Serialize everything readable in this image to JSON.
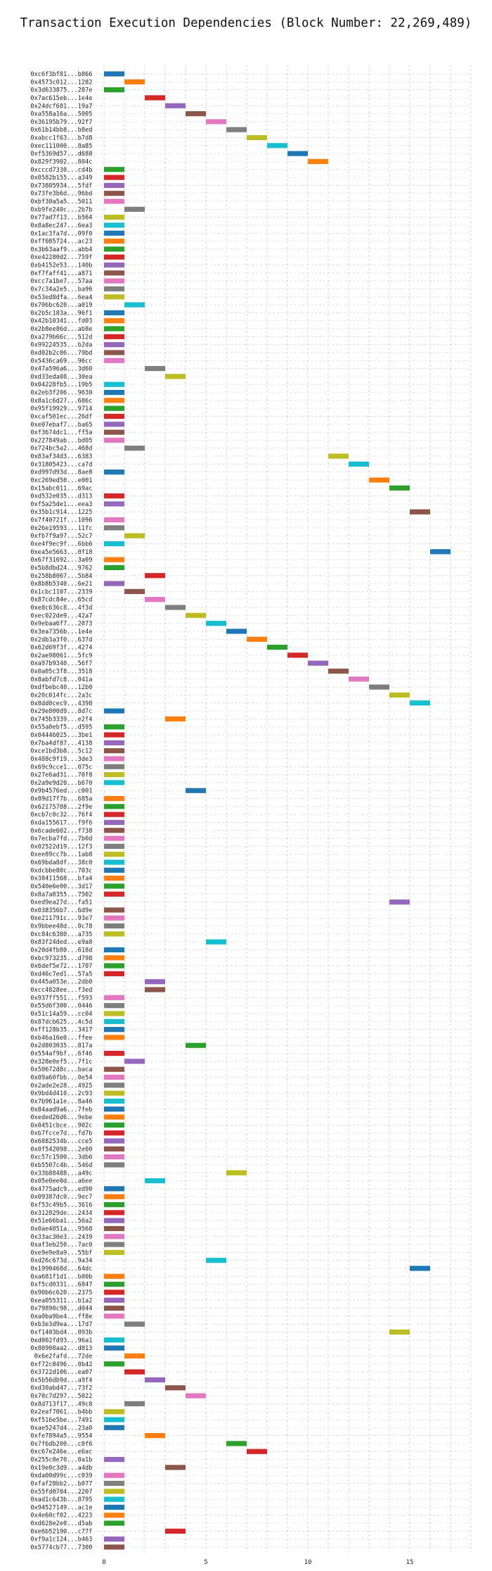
{
  "chart_data": {
    "type": "gantt",
    "title": "Transaction Execution Dependencies (Block Number: 22,269,489)",
    "xlabel": "",
    "ylabel": "",
    "xlim": [
      -0.4,
      18
    ],
    "xticks": [
      0,
      5,
      10,
      15
    ],
    "grid": true,
    "palette": [
      "#1f77b4",
      "#ff7f0e",
      "#2ca02c",
      "#d62728",
      "#9467bd",
      "#8c564b",
      "#e377c2",
      "#7f7f7f",
      "#bcbd22",
      "#17becf"
    ],
    "rows": [
      [
        "0xc6f3bf81...b866",
        0
      ],
      [
        "0x4573c012...1282",
        1
      ],
      [
        "0x3d633875...287e",
        0
      ],
      [
        "0x7ac615eb...1e4e",
        2
      ],
      [
        "0x24dcf681...19a7",
        3
      ],
      [
        "0xa558a16a...5005",
        4
      ],
      [
        "0x36195b79...92f7",
        5
      ],
      [
        "0x61b14bb8...b8ed",
        6
      ],
      [
        "0xabcc1f63...b7d8",
        7
      ],
      [
        "0xec111000...8a85",
        8
      ],
      [
        "0xf5369d57...d688",
        9
      ],
      [
        "0x829f3902...804c",
        10
      ],
      [
        "0xcccd7330...cd4b",
        0
      ],
      [
        "0x0582b155...a349",
        0
      ],
      [
        "0x73805934...5fdf",
        0
      ],
      [
        "0x73fe3b6d...96bd",
        0
      ],
      [
        "0xbf30a5a5...5011",
        0
      ],
      [
        "0xb9fe240c...2b7b",
        1
      ],
      [
        "0x77ad7f13...b564",
        0
      ],
      [
        "0x8a8ec247...6ea3",
        0
      ],
      [
        "0x1ac3fa7d...09f0",
        0
      ],
      [
        "0xff085724...ac23",
        0
      ],
      [
        "0x3b63aaf9...abb4",
        0
      ],
      [
        "0xe42280d2...759f",
        0
      ],
      [
        "0xb4152e53...140b",
        0
      ],
      [
        "0xf7faff41...a871",
        0
      ],
      [
        "0xcc7a1be7...57aa",
        0
      ],
      [
        "0x7c34a2e5...ba96",
        0
      ],
      [
        "0x53ed8dfa...6ea4",
        0
      ],
      [
        "0x706bc620...a019",
        1
      ],
      [
        "0x2b5c183a...96f1",
        0
      ],
      [
        "0x42b10341...fd03",
        0
      ],
      [
        "0x2b8ee86d...ab8e",
        0
      ],
      [
        "0xa279b66c...512d",
        0
      ],
      [
        "0x99224535...b2da",
        0
      ],
      [
        "0xd02b2c06...79bd",
        0
      ],
      [
        "0x5436ca69...96cc",
        0
      ],
      [
        "0x47a596a6...3d60",
        2
      ],
      [
        "0xd33eda08...30ea",
        3
      ],
      [
        "0x04228fb5...19b5",
        0
      ],
      [
        "0x2eb3f206...9630",
        0
      ],
      [
        "0x8a1c6d27...686c",
        0
      ],
      [
        "0x95f19929...9714",
        0
      ],
      [
        "0xcaf501ec...26df",
        0
      ],
      [
        "0xe07ebaf7...ba65",
        0
      ],
      [
        "0xf3674dc1...ff5a",
        0
      ],
      [
        "0x227849ab...bd05",
        0
      ],
      [
        "0x724bc5a2...468d",
        1
      ],
      [
        "0x83af34d3...6383",
        11
      ],
      [
        "0x31805423...ca7d",
        12
      ],
      [
        "0xd997d93d...8ae8",
        0
      ],
      [
        "0xc269ed50...e001",
        13
      ],
      [
        "0x15abc011...69ac",
        14
      ],
      [
        "0xd532e035...d313",
        0
      ],
      [
        "0xf5a25de1...eea3",
        0
      ],
      [
        "0x35b1c914...1225",
        15
      ],
      [
        "0x7f40721f...1096",
        0
      ],
      [
        "0x26e19593...11fc",
        0
      ],
      [
        "0xfb7f9a97...52c7",
        1
      ],
      [
        "0xe4f9ec9f...6bb6",
        0
      ],
      [
        "0xea5e5663...0f18",
        16
      ],
      [
        "0x67f31692...3a09",
        0
      ],
      [
        "0x5b8dbd24...9762",
        0
      ],
      [
        "0x258b8067...5b84",
        2
      ],
      [
        "0x8b8b5340...6e21",
        0
      ],
      [
        "0x1cbc1107...2339",
        1
      ],
      [
        "0x87cdc84e...65cd",
        2
      ],
      [
        "0xe8c636c8...4f3d",
        3
      ],
      [
        "0xec022de9...42a7",
        4
      ],
      [
        "0x9ebaa6f7...2073",
        5
      ],
      [
        "0x3ea7356b...1e4e",
        6
      ],
      [
        "0x2db3a3f0...637d",
        7
      ],
      [
        "0x62d69f3f...4274",
        8
      ],
      [
        "0x2ae98061...5fc9",
        9
      ],
      [
        "0xa97b9340...56f7",
        10
      ],
      [
        "0x0a05c3f8...3518",
        11
      ],
      [
        "0x8abfd7c8...041a",
        12
      ],
      [
        "0xdfbebc40...12b0",
        13
      ],
      [
        "0x20c014fc...2a3c",
        14
      ],
      [
        "0x8dd0cec9...4398",
        15
      ],
      [
        "0x29e800d9...8d7c",
        0
      ],
      [
        "0x745b3339...e2f4",
        3
      ],
      [
        "0x55a0ebf5...d595",
        0
      ],
      [
        "0x04446025...3be1",
        0
      ],
      [
        "0x7ba4df87...4138",
        0
      ],
      [
        "0xce1bd3b8...5c12",
        0
      ],
      [
        "0x488c9f19...3de3",
        0
      ],
      [
        "0x69c9cce1...075c",
        0
      ],
      [
        "0x27e6ad31...70f8",
        0
      ],
      [
        "0x2a9e9d20...b670",
        0
      ],
      [
        "0x9b4576ed...c001",
        4
      ],
      [
        "0x89d17f7b...685a",
        0
      ],
      [
        "0x62175788...2f9e",
        0
      ],
      [
        "0xcb7c0c32...76f4",
        0
      ],
      [
        "0xda155617...f9f6",
        0
      ],
      [
        "0x6cade602...f738",
        0
      ],
      [
        "0x7ecba7fd...7b0d",
        0
      ],
      [
        "0x02522d19...12f3",
        0
      ],
      [
        "0xee89cc7b...1ab8",
        0
      ],
      [
        "0x69bda8df...38c0",
        0
      ],
      [
        "0xdcbbe80c...703c",
        0
      ],
      [
        "0x38411568...bfa4",
        0
      ],
      [
        "0x540e6e00...3d17",
        0
      ],
      [
        "0x8a7a8355...7502",
        0
      ],
      [
        "0xed9ea27d...fa51",
        14
      ],
      [
        "0x038356b7...6d9e",
        0
      ],
      [
        "0xe211791c...93e7",
        0
      ],
      [
        "0x9bbee48d...0c78",
        0
      ],
      [
        "0xc84c6380...a735",
        0
      ],
      [
        "0x83f24ded...e9a8",
        5
      ],
      [
        "0x20d4fb80...618d",
        0
      ],
      [
        "0xbc973235...d798",
        0
      ],
      [
        "0x6def5e72...1707",
        0
      ],
      [
        "0xd46c7ed1...57a5",
        0
      ],
      [
        "0x445a053e...2db0",
        2
      ],
      [
        "0xcc4828ee...f3ed",
        2
      ],
      [
        "0x937ff551...f593",
        0
      ],
      [
        "0x55d6f300...0446",
        0
      ],
      [
        "0x51c14a59...cc04",
        0
      ],
      [
        "0x87dcb625...4c5d",
        0
      ],
      [
        "0xff128b35...3417",
        0
      ],
      [
        "0xb46a16e0...ffee",
        0
      ],
      [
        "0x2d803035...817a",
        4
      ],
      [
        "0x554af9bf...6f46",
        0
      ],
      [
        "0x328e0ef5...7f1c",
        1
      ],
      [
        "0x50672d8c...baca",
        0
      ],
      [
        "0x89a60fbb...0e54",
        0
      ],
      [
        "0x2ade2e28...4925",
        0
      ],
      [
        "0x9bd4d410...2c93",
        0
      ],
      [
        "0x7b961a1e...8a46",
        0
      ],
      [
        "0x84aad9a6...7feb",
        0
      ],
      [
        "0xeded26d6...9ebe",
        0
      ],
      [
        "0x0451cbce...902c",
        0
      ],
      [
        "0xb7fcce7d...fd7b",
        0
      ],
      [
        "0x6882534b...cce5",
        0
      ],
      [
        "0x0f542098...2e00",
        0
      ],
      [
        "0xc57c1500...3db6",
        0
      ],
      [
        "0xb5507c4b...546d",
        0
      ],
      [
        "0x33b88488...a49c",
        6
      ],
      [
        "0x05e0ee0d...a6ee",
        2
      ],
      [
        "0x4775adc9...ed90",
        0
      ],
      [
        "0x09387dc0...9ec7",
        0
      ],
      [
        "0xf53c49b5...3616",
        0
      ],
      [
        "0x312029de...2434",
        0
      ],
      [
        "0x51e66ba1...56a2",
        0
      ],
      [
        "0x0ae4051a...9568",
        0
      ],
      [
        "0x33ac30e3...2439",
        0
      ],
      [
        "0xaf3eb250...7ac0",
        0
      ],
      [
        "0xe9e9e8a9...55bf",
        0
      ],
      [
        "0xd26c673d...9a34",
        5
      ],
      [
        "0x1990468d...64dc",
        15
      ],
      [
        "0xa681f1d1...b00b",
        0
      ],
      [
        "0xf5cd0331...6847",
        0
      ],
      [
        "0x90b6c620...2375",
        0
      ],
      [
        "0xea055311...b1a2",
        0
      ],
      [
        "0x79890c98...d044",
        0
      ],
      [
        "0xa0ba9be4...ff8e",
        0
      ],
      [
        "0xb3e3d9ea...17d7",
        1
      ],
      [
        "0xf1403bd4...093b",
        14
      ],
      [
        "0xd002fd93...96a1",
        0
      ],
      [
        "0x80908aa2...d813",
        0
      ],
      [
        "0x6e2fafd...72de",
        1
      ],
      [
        "0xf72c8496...0b42",
        0
      ],
      [
        "0x3722d106...ea07",
        1
      ],
      [
        "0x5b56db9d...a9f4",
        2
      ],
      [
        "0xd30abd47...73f2",
        3
      ],
      [
        "0x70c7d297...5022",
        4
      ],
      [
        "0x8d713f17...49c8",
        1
      ],
      [
        "0x2eaf7061...b4bb",
        0
      ],
      [
        "0xf516e5be...7491",
        0
      ],
      [
        "0xae5247d4...23a0",
        0
      ],
      [
        "0xfe7894a5...9554",
        2
      ],
      [
        "0x7f6db200...c0f6",
        6
      ],
      [
        "0xc67e246e...e6ac",
        7
      ],
      [
        "0x255c0e70...0a1b",
        0
      ],
      [
        "0x19e0c3d9...a4db",
        3
      ],
      [
        "0xda00d99c...c039",
        0
      ],
      [
        "0xfaf28bb2...b077",
        0
      ],
      [
        "0x55fd0704...2207",
        0
      ],
      [
        "0xad1c643b...8795",
        0
      ],
      [
        "0x94527149...ac1e",
        0
      ],
      [
        "0x4e60cf02...4223",
        0
      ],
      [
        "0xd628e2e0...d5ab",
        0
      ],
      [
        "0xe6b52190...c77f",
        3
      ],
      [
        "0xf9a1c124...b463",
        0
      ],
      [
        "0x5774cb77...7300",
        0
      ]
    ]
  }
}
